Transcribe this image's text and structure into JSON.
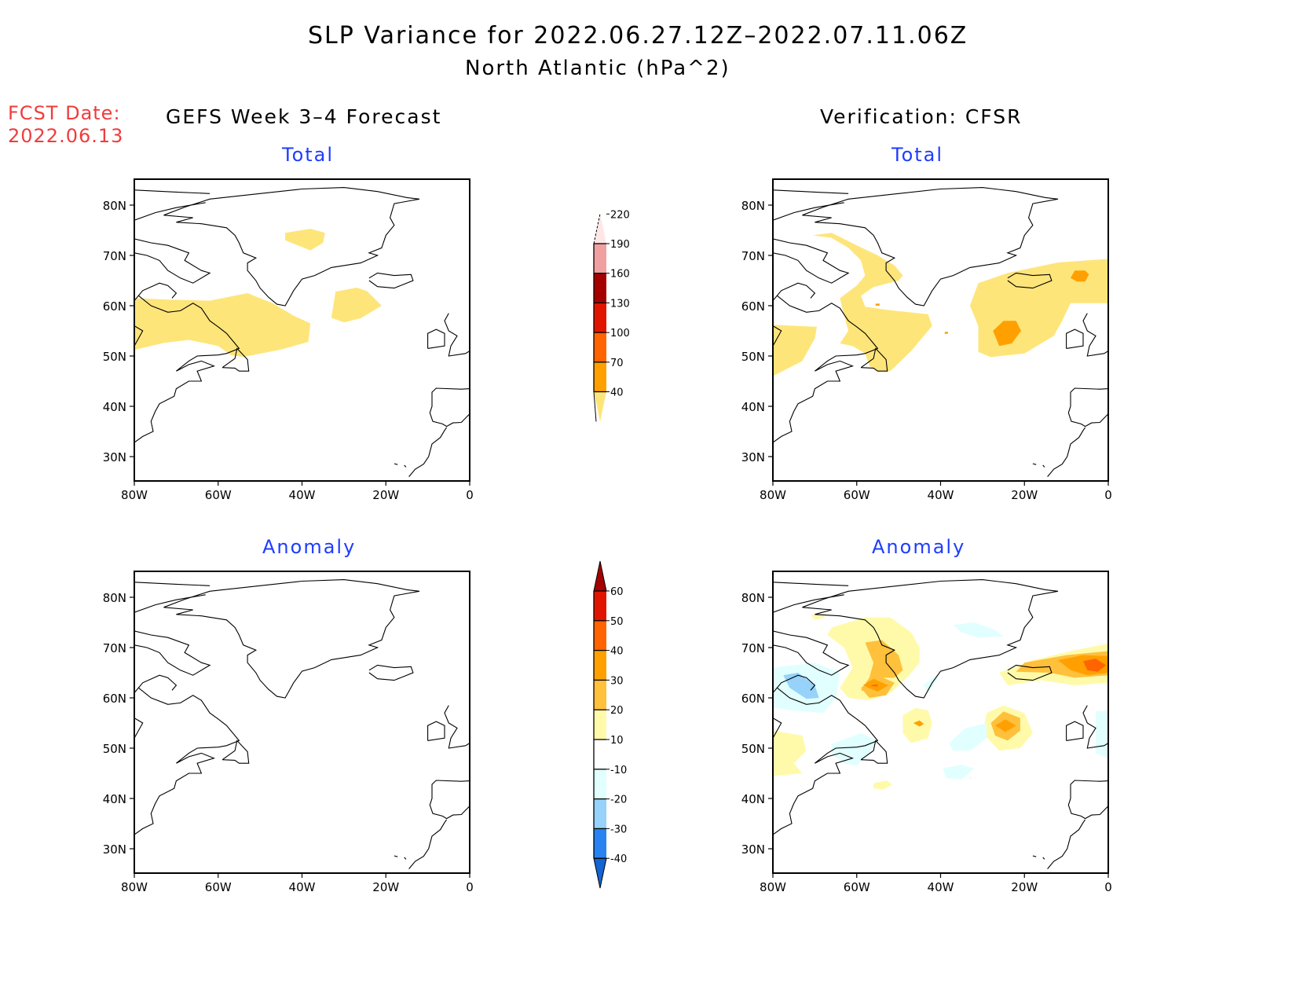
{
  "header": {
    "title": "SLP Variance for 2022.06.27.12Z–2022.07.11.06Z",
    "subtitle": "North Atlantic (hPa^2)",
    "fcst_label": "FCST Date:",
    "fcst_date": "2022.06.13",
    "left_column_title": "GEFS Week 3–4 Forecast",
    "right_column_title": "Verification: CFSR"
  },
  "chart_data": [
    {
      "id": "gefs-total",
      "type": "heatmap",
      "title": "Total",
      "column": "GEFS Week 3-4 Forecast",
      "xlabel": "",
      "ylabel": "",
      "xlim": [
        -80,
        0
      ],
      "ylim": [
        25,
        85
      ],
      "x_ticks": [
        "80W",
        "60W",
        "40W",
        "20W",
        "0"
      ],
      "y_ticks": [
        "30N",
        "40N",
        "50N",
        "60N",
        "70N",
        "80N"
      ],
      "colorscale": "total",
      "regions": [
        {
          "level": "40-70",
          "approx_center": [
            -38,
            74
          ],
          "note": "central Greenland"
        },
        {
          "level": "40-70",
          "approx_center": [
            -28,
            60
          ],
          "note": "SE of Greenland"
        },
        {
          "level": "40-70",
          "approx_center": [
            -62,
            56
          ],
          "note": "Labrador band to 40W"
        }
      ]
    },
    {
      "id": "cfsr-total",
      "type": "heatmap",
      "title": "Total",
      "column": "Verification: CFSR",
      "xlim": [
        -80,
        0
      ],
      "ylim": [
        25,
        85
      ],
      "x_ticks": [
        "80W",
        "60W",
        "40W",
        "20W",
        "0"
      ],
      "y_ticks": [
        "30N",
        "40N",
        "50N",
        "60N",
        "70N",
        "80N"
      ],
      "colorscale": "total",
      "regions": [
        {
          "level": "40-70",
          "approx_center": [
            -48,
            60
          ],
          "note": "Baffin Bay / Labrador Sea"
        },
        {
          "level": "40-70",
          "approx_center": [
            -20,
            60
          ],
          "note": "Iceland / NE Atlantic"
        },
        {
          "level": "40-70",
          "approx_center": [
            -75,
            51
          ],
          "note": "Hudson Bay"
        },
        {
          "level": "70-100",
          "approx_center": [
            -25,
            55
          ],
          "note": "south of Iceland"
        },
        {
          "level": "70-100",
          "approx_center": [
            -8,
            66
          ],
          "note": "east of Iceland"
        }
      ]
    },
    {
      "id": "gefs-anomaly",
      "type": "heatmap",
      "title": "Anomaly",
      "column": "GEFS Week 3-4 Forecast",
      "xlim": [
        -80,
        0
      ],
      "ylim": [
        25,
        85
      ],
      "x_ticks": [
        "80W",
        "60W",
        "40W",
        "20W",
        "0"
      ],
      "y_ticks": [
        "30N",
        "40N",
        "50N",
        "60N",
        "70N",
        "80N"
      ],
      "colorscale": "anomaly",
      "regions": []
    },
    {
      "id": "cfsr-anomaly",
      "type": "heatmap",
      "title": "Anomaly",
      "column": "Verification: CFSR",
      "xlim": [
        -80,
        0
      ],
      "ylim": [
        25,
        85
      ],
      "x_ticks": [
        "80W",
        "60W",
        "40W",
        "20W",
        "0"
      ],
      "y_ticks": [
        "30N",
        "40N",
        "50N",
        "60N",
        "70N",
        "80N"
      ],
      "colorscale": "anomaly",
      "regions": [
        {
          "level": "10-20",
          "approx_center": [
            -52,
            68
          ]
        },
        {
          "level": "20-30",
          "approx_center": [
            -50,
            68
          ]
        },
        {
          "level": "30-40",
          "approx_center": [
            -55,
            62
          ]
        },
        {
          "level": "40-50",
          "approx_center": [
            -56,
            62
          ]
        },
        {
          "level": "10-20",
          "approx_center": [
            -12,
            65
          ]
        },
        {
          "level": "30-40",
          "approx_center": [
            -8,
            66
          ]
        },
        {
          "level": "40-50",
          "approx_center": [
            -5,
            66
          ]
        },
        {
          "level": "30-40",
          "approx_center": [
            -25,
            55
          ]
        },
        {
          "level": "10-20",
          "approx_center": [
            -45,
            55
          ]
        },
        {
          "level": "10-20",
          "approx_center": [
            -78,
            48
          ]
        },
        {
          "level": "10-20",
          "approx_center": [
            -54,
            42
          ]
        },
        {
          "level": "-20--10",
          "approx_center": [
            -72,
            62
          ]
        },
        {
          "level": "-30--20",
          "approx_center": [
            -73,
            63
          ]
        },
        {
          "level": "-20--10",
          "approx_center": [
            -60,
            50
          ]
        },
        {
          "level": "-20--10",
          "approx_center": [
            -35,
            52
          ]
        },
        {
          "level": "-20--10",
          "approx_center": [
            -5,
            52
          ]
        },
        {
          "level": "-20--10",
          "approx_center": [
            -30,
            76
          ]
        },
        {
          "level": "-20--10",
          "approx_center": [
            -35,
            44
          ]
        }
      ]
    }
  ],
  "colorbars": {
    "total": {
      "labels": [
        "40",
        "70",
        "100",
        "130",
        "160",
        "190",
        "220"
      ],
      "colors": [
        "#fee57a",
        "#ffa000",
        "#ff6400",
        "#e11400",
        "#a50000",
        "#f0a0a0",
        "#ffe6e6"
      ],
      "extend": "both"
    },
    "anomaly": {
      "labels": [
        "-40",
        "-30",
        "-20",
        "-10",
        "10",
        "20",
        "30",
        "40",
        "50",
        "60"
      ],
      "colors": [
        "#1464d2",
        "#2882f0",
        "#96d2fa",
        "#e1ffff",
        "#ffffff",
        "#fffaaa",
        "#ffc03c",
        "#ffa000",
        "#ff6400",
        "#e11400",
        "#a50000"
      ],
      "extend": "both"
    }
  }
}
